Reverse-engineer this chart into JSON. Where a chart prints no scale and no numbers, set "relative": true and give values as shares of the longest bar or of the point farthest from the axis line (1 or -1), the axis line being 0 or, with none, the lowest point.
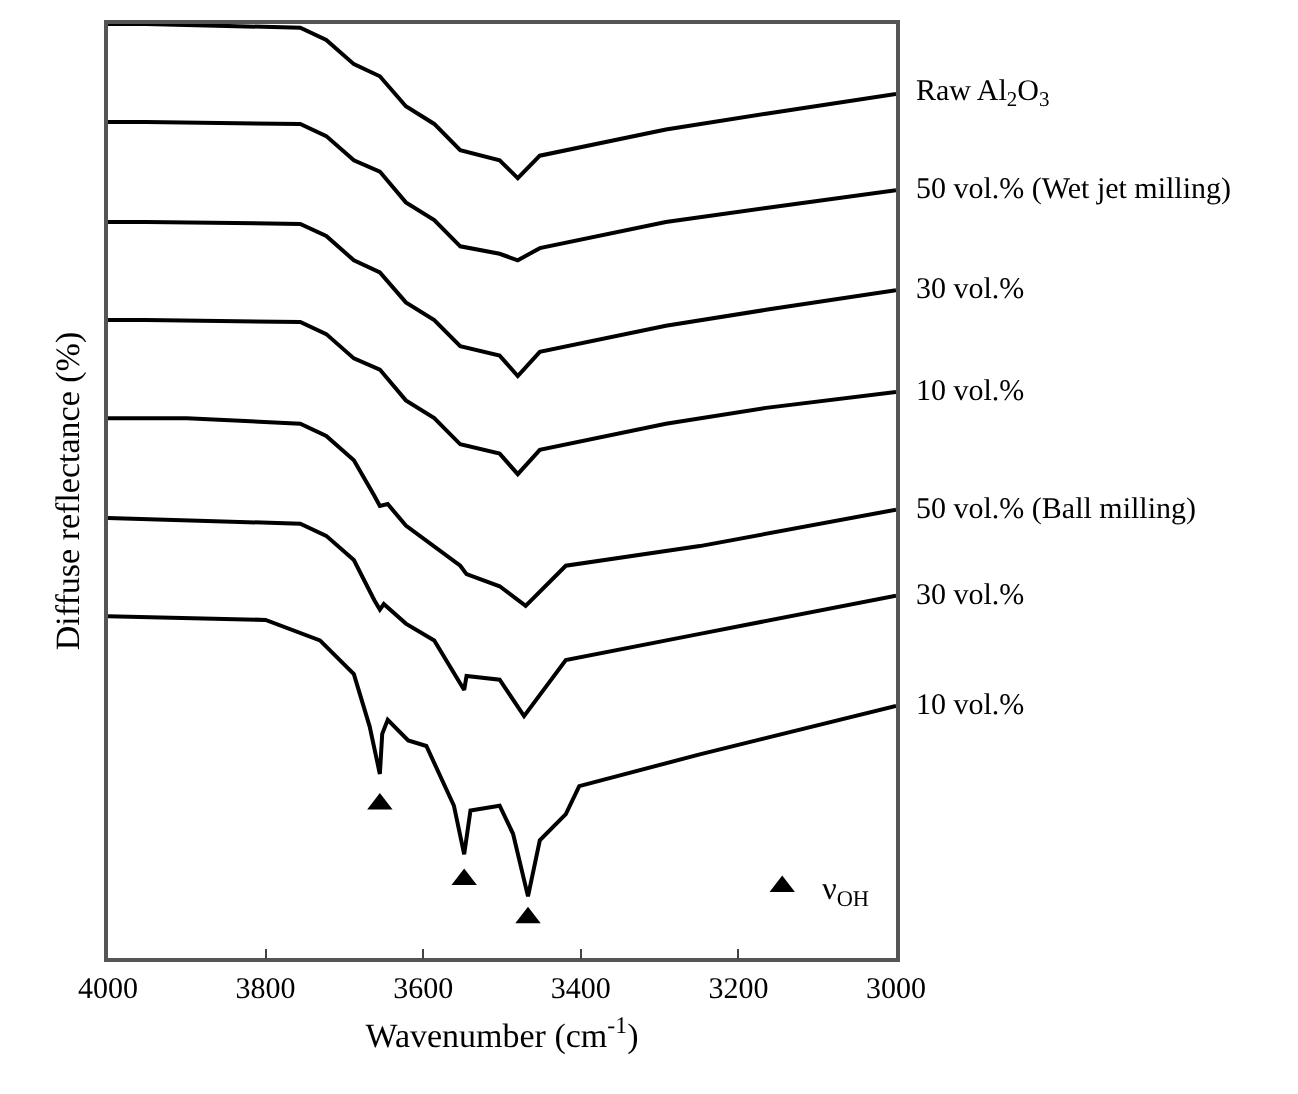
{
  "chart_data": {
    "type": "line",
    "xlabel": "Wavenumber (cm$^{-1}$)",
    "ylabel": "Diffuse reflectance (%)",
    "relative": true,
    "xlim": [
      4000,
      3000
    ],
    "xticks": [
      4000,
      3800,
      3600,
      3400,
      3200,
      3000
    ],
    "tick_labels": "x",
    "grid": false,
    "legend": "bottom right",
    "marker": "none",
    "line_style": "solid",
    "series": [
      {
        "name": "Raw Al$_{2}$O$_{3}$",
        "color": "#000000",
        "x": [
          4000,
          3952,
          3756,
          3723,
          3688,
          3655,
          3622,
          3586,
          3553,
          3503,
          3480,
          3452,
          3292,
          3165,
          3000
        ],
        "values": [
          1,
          1,
          0.996,
          0.983,
          0.957,
          0.944,
          0.912,
          0.893,
          0.865,
          0.854,
          0.835,
          0.859,
          0.887,
          0.904,
          0.925
        ]
      },
      {
        "name": "50 vol.% (Wet jet milling)",
        "color": "#000000",
        "x": [
          4000,
          3952,
          3756,
          3723,
          3688,
          3655,
          3622,
          3586,
          3553,
          3503,
          3480,
          3452,
          3292,
          3165,
          3000
        ],
        "values": [
          0.895,
          0.895,
          0.893,
          0.88,
          0.854,
          0.842,
          0.809,
          0.79,
          0.762,
          0.754,
          0.747,
          0.76,
          0.788,
          0.803,
          0.822
        ]
      },
      {
        "name": "30 vol.%",
        "color": "#000000",
        "x": [
          4000,
          3952,
          3756,
          3723,
          3688,
          3655,
          3622,
          3586,
          3553,
          3503,
          3480,
          3452,
          3292,
          3165,
          3000
        ],
        "values": [
          0.788,
          0.788,
          0.786,
          0.773,
          0.747,
          0.734,
          0.702,
          0.683,
          0.655,
          0.645,
          0.623,
          0.649,
          0.677,
          0.694,
          0.715
        ]
      },
      {
        "name": "10 vol.%",
        "color": "#000000",
        "x": [
          4000,
          3952,
          3756,
          3723,
          3688,
          3655,
          3622,
          3586,
          3553,
          3503,
          3480,
          3452,
          3292,
          3165,
          3000
        ],
        "values": [
          0.683,
          0.683,
          0.681,
          0.668,
          0.642,
          0.63,
          0.597,
          0.578,
          0.55,
          0.54,
          0.518,
          0.544,
          0.572,
          0.589,
          0.606
        ]
      },
      {
        "name": "50 vol.% (Ball milling)",
        "color": "#000000",
        "x": [
          4000,
          3900,
          3756,
          3723,
          3688,
          3662,
          3655,
          3645,
          3622,
          3553,
          3545,
          3503,
          3470,
          3419,
          3249,
          3000
        ],
        "values": [
          0.578,
          0.578,
          0.572,
          0.559,
          0.533,
          0.495,
          0.484,
          0.486,
          0.463,
          0.42,
          0.411,
          0.398,
          0.377,
          0.42,
          0.441,
          0.48
        ]
      },
      {
        "name": "30 vol.%",
        "color": "#000000",
        "x": [
          4000,
          3756,
          3723,
          3688,
          3662,
          3655,
          3650,
          3622,
          3586,
          3548,
          3545,
          3503,
          3472,
          3419,
          3249,
          3000
        ],
        "values": [
          0.471,
          0.465,
          0.452,
          0.426,
          0.383,
          0.373,
          0.379,
          0.358,
          0.34,
          0.287,
          0.302,
          0.298,
          0.259,
          0.319,
          0.347,
          0.388
        ]
      },
      {
        "name": "10 vol.%",
        "color": "#000000",
        "x": [
          4000,
          3800,
          3731,
          3688,
          3668,
          3655,
          3652,
          3645,
          3619,
          3596,
          3561,
          3548,
          3540,
          3503,
          3486,
          3467,
          3452,
          3419,
          3402,
          3249,
          3000
        ],
        "values": [
          0.366,
          0.362,
          0.34,
          0.304,
          0.248,
          0.197,
          0.24,
          0.255,
          0.233,
          0.227,
          0.163,
          0.111,
          0.158,
          0.163,
          0.133,
          0.066,
          0.126,
          0.154,
          0.184,
          0.218,
          0.27
        ]
      },
      {
        "name": "ν$_{OH}$",
        "type": "scatter",
        "marker": "triangle",
        "color": "#000000",
        "x": [
          3655,
          3548,
          3467
        ],
        "values": [
          0.165,
          0.084,
          0.043
        ]
      }
    ]
  }
}
